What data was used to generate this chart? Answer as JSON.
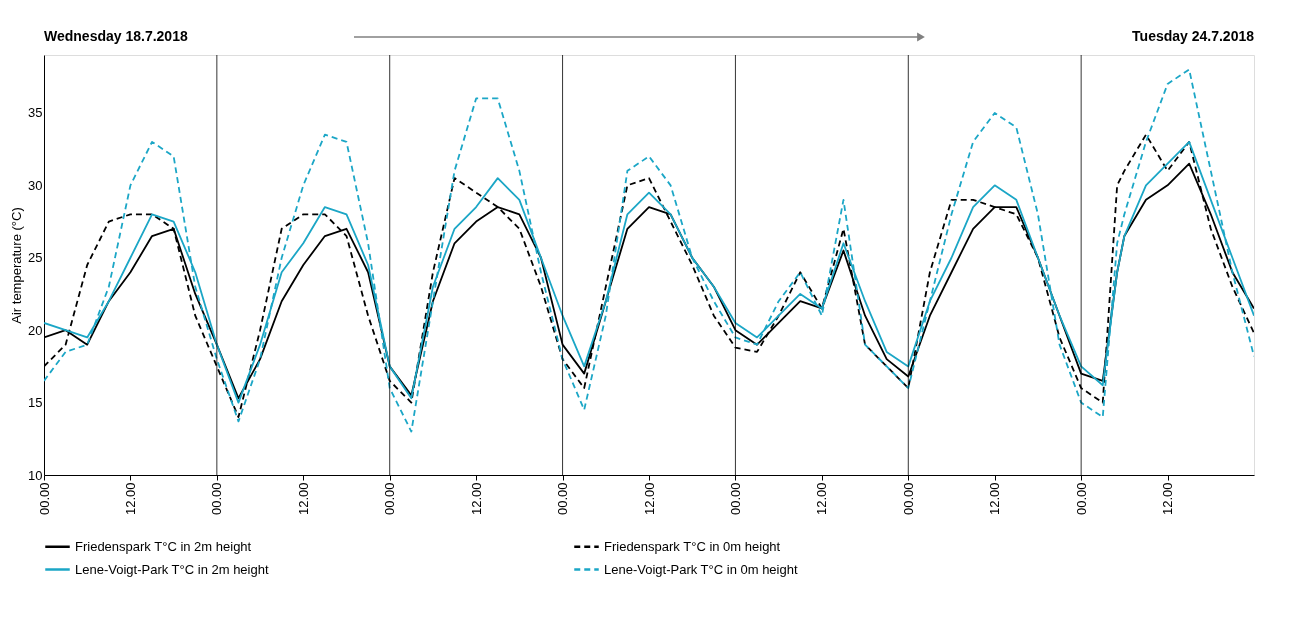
{
  "chart_data": {
    "type": "line",
    "ylabel": "Air temperature (°C)",
    "annotations": [
      "Wednesday 18.7.2018",
      "Tuesday 24.7.2018"
    ],
    "x": [
      "2018-07-18T00:00",
      "2018-07-18T03:00",
      "2018-07-18T06:00",
      "2018-07-18T09:00",
      "2018-07-18T12:00",
      "2018-07-18T15:00",
      "2018-07-18T18:00",
      "2018-07-18T21:00",
      "2018-07-19T00:00",
      "2018-07-19T03:00",
      "2018-07-19T06:00",
      "2018-07-19T09:00",
      "2018-07-19T12:00",
      "2018-07-19T15:00",
      "2018-07-19T18:00",
      "2018-07-19T21:00",
      "2018-07-20T00:00",
      "2018-07-20T03:00",
      "2018-07-20T06:00",
      "2018-07-20T09:00",
      "2018-07-20T12:00",
      "2018-07-20T15:00",
      "2018-07-20T18:00",
      "2018-07-20T21:00",
      "2018-07-21T00:00",
      "2018-07-21T03:00",
      "2018-07-21T06:00",
      "2018-07-21T09:00",
      "2018-07-21T12:00",
      "2018-07-21T15:00",
      "2018-07-21T18:00",
      "2018-07-21T21:00",
      "2018-07-22T00:00",
      "2018-07-22T03:00",
      "2018-07-22T06:00",
      "2018-07-22T09:00",
      "2018-07-22T12:00",
      "2018-07-22T15:00",
      "2018-07-22T18:00",
      "2018-07-22T21:00",
      "2018-07-23T00:00",
      "2018-07-23T03:00",
      "2018-07-23T06:00",
      "2018-07-23T09:00",
      "2018-07-23T12:00",
      "2018-07-23T15:00",
      "2018-07-23T18:00",
      "2018-07-23T21:00",
      "2018-07-24T00:00",
      "2018-07-24T03:00",
      "2018-07-24T05:00",
      "2018-07-24T06:00",
      "2018-07-24T09:00",
      "2018-07-24T12:00",
      "2018-07-24T15:00",
      "2018-07-24T18:00",
      "2018-07-24T21:00",
      "2018-07-25T00:00"
    ],
    "xlim": [
      "2018-07-18T00:00",
      "2018-07-25T00:00"
    ],
    "xticks": [
      {
        "value": "2018-07-18T00:00",
        "label": "00.00"
      },
      {
        "value": "2018-07-18T12:00",
        "label": "12.00"
      },
      {
        "value": "2018-07-19T00:00",
        "label": "00.00"
      },
      {
        "value": "2018-07-19T12:00",
        "label": "12.00"
      },
      {
        "value": "2018-07-20T00:00",
        "label": "00.00"
      },
      {
        "value": "2018-07-20T12:00",
        "label": "12.00"
      },
      {
        "value": "2018-07-21T00:00",
        "label": "00.00"
      },
      {
        "value": "2018-07-21T12:00",
        "label": "12.00"
      },
      {
        "value": "2018-07-22T00:00",
        "label": "00.00"
      },
      {
        "value": "2018-07-22T12:00",
        "label": "12.00"
      },
      {
        "value": "2018-07-23T00:00",
        "label": "00.00"
      },
      {
        "value": "2018-07-23T12:00",
        "label": "12.00"
      },
      {
        "value": "2018-07-24T00:00",
        "label": "00.00"
      },
      {
        "value": "2018-07-24T12:00",
        "label": "12.00"
      }
    ],
    "ylim": [
      10,
      39
    ],
    "yticks": [
      10,
      15,
      20,
      25,
      30,
      35
    ],
    "grid": false,
    "legend": "bottom",
    "ref_lines": [
      {
        "axis": "x",
        "value": "2018-07-19T00:00",
        "color": "#000000"
      },
      {
        "axis": "x",
        "value": "2018-07-20T00:00",
        "color": "#000000"
      },
      {
        "axis": "x",
        "value": "2018-07-21T00:00",
        "color": "#000000"
      },
      {
        "axis": "x",
        "value": "2018-07-22T00:00",
        "color": "#000000"
      },
      {
        "axis": "x",
        "value": "2018-07-23T00:00",
        "color": "#000000"
      },
      {
        "axis": "x",
        "value": "2018-07-24T00:00",
        "color": "#000000"
      }
    ],
    "series": [
      {
        "name": "Friedenspark T°C in 2m height",
        "color": "#000000",
        "line_style": "solid",
        "values": [
          19.5,
          20,
          19,
          22,
          24,
          26.5,
          27,
          22.5,
          19,
          15.3,
          18,
          22,
          24.5,
          26.5,
          27,
          24,
          17.5,
          15.5,
          22,
          26,
          27.5,
          28.5,
          28,
          25,
          19,
          17,
          22,
          27,
          28.5,
          28,
          25,
          23,
          20,
          19,
          20.5,
          22,
          21.5,
          25.5,
          21,
          18,
          16.8,
          21,
          24,
          27,
          28.5,
          28.5,
          25,
          21,
          17,
          16.5,
          24,
          26.5,
          29,
          30,
          31.5,
          28,
          24,
          21.5
        ]
      },
      {
        "name": "Friedenspark T°C in 0m height",
        "color": "#000000",
        "line_style": "dashed",
        "values": [
          17.5,
          19,
          24.5,
          27.5,
          28,
          28,
          27,
          21,
          17.5,
          14,
          20,
          27,
          28,
          28,
          26.5,
          21,
          16.5,
          15,
          24,
          30.5,
          29.5,
          28.5,
          27,
          23,
          18,
          16,
          23,
          30,
          30.5,
          27.5,
          24.5,
          21,
          18.8,
          18.5,
          21,
          24,
          21.5,
          27,
          19,
          17.5,
          16,
          24,
          29,
          29,
          28.5,
          28,
          25,
          19.5,
          16,
          15,
          30,
          31,
          33.5,
          31,
          33,
          27,
          23,
          19.8
        ]
      },
      {
        "name": "Lene-Voigt-Park T°C in 2m height",
        "color": "#1ba6c6",
        "line_style": "solid",
        "values": [
          20.5,
          20,
          19.5,
          22,
          25,
          28,
          27.5,
          24,
          19,
          15,
          19,
          24,
          26,
          28.5,
          28,
          24.5,
          17.5,
          15.3,
          23,
          27,
          28.5,
          30.5,
          29,
          25,
          21,
          17.5,
          22,
          28,
          29.5,
          28,
          25,
          23,
          20.5,
          19.5,
          21,
          22.5,
          21.5,
          26,
          22,
          18.5,
          17.5,
          22,
          25,
          28.5,
          30,
          29,
          25,
          21,
          17.5,
          16.2,
          24,
          26.5,
          30,
          31.5,
          33,
          29,
          25,
          21
        ]
      },
      {
        "name": "Lene-Voigt-Park T°C in 0m height",
        "color": "#1ba6c6",
        "line_style": "dashed",
        "values": [
          16.5,
          18.5,
          19,
          23,
          30,
          33,
          32,
          23,
          18,
          13.7,
          18,
          25,
          30,
          33.5,
          33,
          26,
          16,
          13,
          22,
          31,
          36,
          36,
          31,
          24,
          18,
          14.5,
          21,
          31,
          32,
          30,
          25,
          22,
          19.5,
          19,
          22,
          24,
          21,
          29,
          19,
          17.5,
          16,
          22,
          28,
          33,
          35,
          34,
          28,
          19,
          15,
          14,
          26,
          28,
          33,
          37,
          38,
          31,
          24,
          18.2
        ]
      }
    ]
  }
}
